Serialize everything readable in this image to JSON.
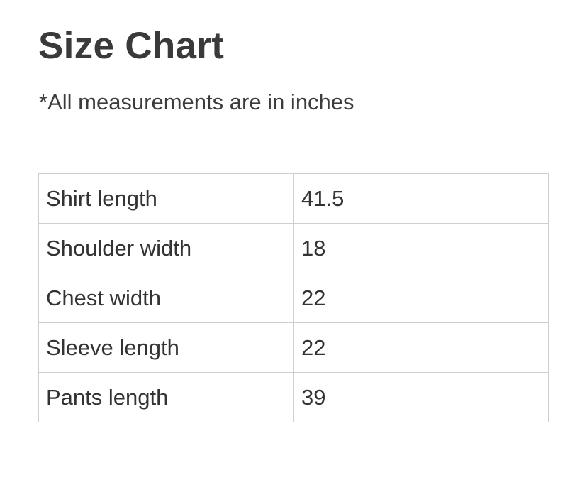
{
  "title": "Size Chart",
  "subtitle": "*All measurements are in inches",
  "rows": [
    {
      "label": "Shirt length",
      "value": "41.5"
    },
    {
      "label": "Shoulder width",
      "value": "18"
    },
    {
      "label": "Chest width",
      "value": "22"
    },
    {
      "label": "Sleeve length",
      "value": "22"
    },
    {
      "label": "Pants length",
      "value": "39"
    }
  ]
}
